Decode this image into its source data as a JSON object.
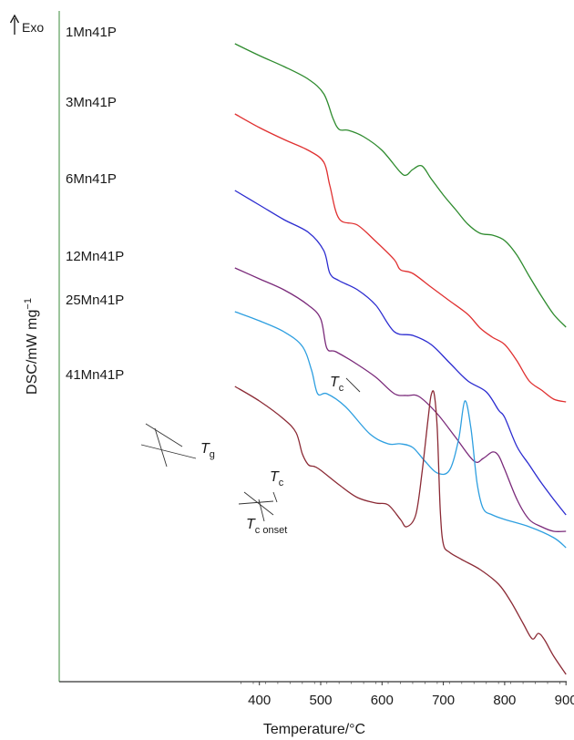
{
  "chart_data": {
    "type": "line",
    "title": "",
    "xlabel": "Temperature/°C",
    "ylabel": "DSC/mW mg",
    "ylabel_sup": "−1",
    "exo_label": "Exo",
    "xlim": [
      360,
      905
    ],
    "xticks": [
      400,
      500,
      600,
      700,
      800,
      900
    ],
    "grid": false,
    "legend": "inline labels at left end of each curve",
    "series": [
      {
        "name": "1Mn41P",
        "color": "#2e8b2e",
        "x": [
          360,
          400,
          440,
          480,
          505,
          520,
          530,
          545,
          570,
          600,
          630,
          640,
          650,
          665,
          680,
          700,
          720,
          740,
          760,
          780,
          800,
          820,
          840,
          860,
          880,
          900
        ],
        "y": [
          48,
          61,
          73,
          87,
          103,
          130,
          142,
          143,
          150,
          165,
          189,
          192,
          186,
          182,
          196,
          214,
          230,
          246,
          256,
          258,
          264,
          280,
          303,
          325,
          345,
          359
        ]
      },
      {
        "name": "3Mn41P",
        "color": "#e03030",
        "x": [
          360,
          400,
          440,
          480,
          505,
          515,
          530,
          560,
          590,
          620,
          630,
          650,
          680,
          710,
          740,
          760,
          780,
          800,
          820,
          840,
          860,
          880,
          900
        ],
        "y": [
          125,
          140,
          153,
          165,
          178,
          204,
          240,
          247,
          265,
          285,
          296,
          300,
          315,
          330,
          345,
          360,
          370,
          378,
          396,
          418,
          428,
          438,
          441
        ]
      },
      {
        "name": "6Mn41P",
        "color": "#2b2bd0",
        "x": [
          360,
          400,
          440,
          480,
          505,
          515,
          530,
          560,
          590,
          620,
          650,
          680,
          710,
          740,
          770,
          790,
          800,
          820,
          840,
          860,
          880,
          900
        ],
        "y": [
          209,
          225,
          241,
          255,
          275,
          300,
          308,
          318,
          335,
          364,
          368,
          378,
          398,
          418,
          430,
          450,
          458,
          490,
          510,
          530,
          548,
          565
        ]
      },
      {
        "name": "12Mn41P",
        "color": "#7a2a7a",
        "x": [
          360,
          400,
          440,
          480,
          500,
          510,
          525,
          560,
          590,
          620,
          640,
          660,
          690,
          720,
          750,
          765,
          780,
          790,
          800,
          820,
          840,
          860,
          880,
          900
        ],
        "y": [
          294,
          306,
          318,
          335,
          350,
          382,
          386,
          400,
          414,
          432,
          434,
          435,
          454,
          480,
          506,
          503,
          496,
          500,
          515,
          548,
          570,
          578,
          583,
          583
        ]
      },
      {
        "name": "25Mn41P",
        "color": "#2e9fe0",
        "x": [
          360,
          400,
          440,
          470,
          485,
          495,
          510,
          540,
          580,
          610,
          630,
          650,
          670,
          690,
          710,
          725,
          735,
          745,
          755,
          765,
          780,
          800,
          840,
          880,
          900
        ],
        "y": [
          342,
          352,
          364,
          380,
          406,
          432,
          432,
          446,
          476,
          487,
          487,
          491,
          506,
          519,
          516,
          482,
          440,
          470,
          530,
          558,
          565,
          570,
          578,
          590,
          601
        ]
      },
      {
        "name": "41Mn41P",
        "color": "#8b2a35",
        "x": [
          360,
          400,
          440,
          460,
          470,
          480,
          490,
          500,
          530,
          560,
          590,
          610,
          630,
          640,
          655,
          665,
          675,
          680,
          685,
          690,
          695,
          700,
          710,
          730,
          760,
          790,
          810,
          830,
          845,
          855,
          865,
          880,
          900
        ],
        "y": [
          424,
          440,
          460,
          475,
          498,
          510,
          512,
          516,
          532,
          546,
          552,
          554,
          570,
          578,
          565,
          520,
          460,
          434,
          432,
          470,
          560,
          597,
          606,
          614,
          625,
          641,
          660,
          684,
          701,
          695,
          702,
          720,
          740
        ]
      }
    ],
    "annotations": [
      {
        "label": "T",
        "sub": "g",
        "x": 472
      },
      {
        "label": "T",
        "sub": "c",
        "x": 584
      },
      {
        "label": "T",
        "sub": "c onset",
        "x": 572
      },
      {
        "label": "T",
        "sub": "c",
        "x": 683
      }
    ]
  }
}
